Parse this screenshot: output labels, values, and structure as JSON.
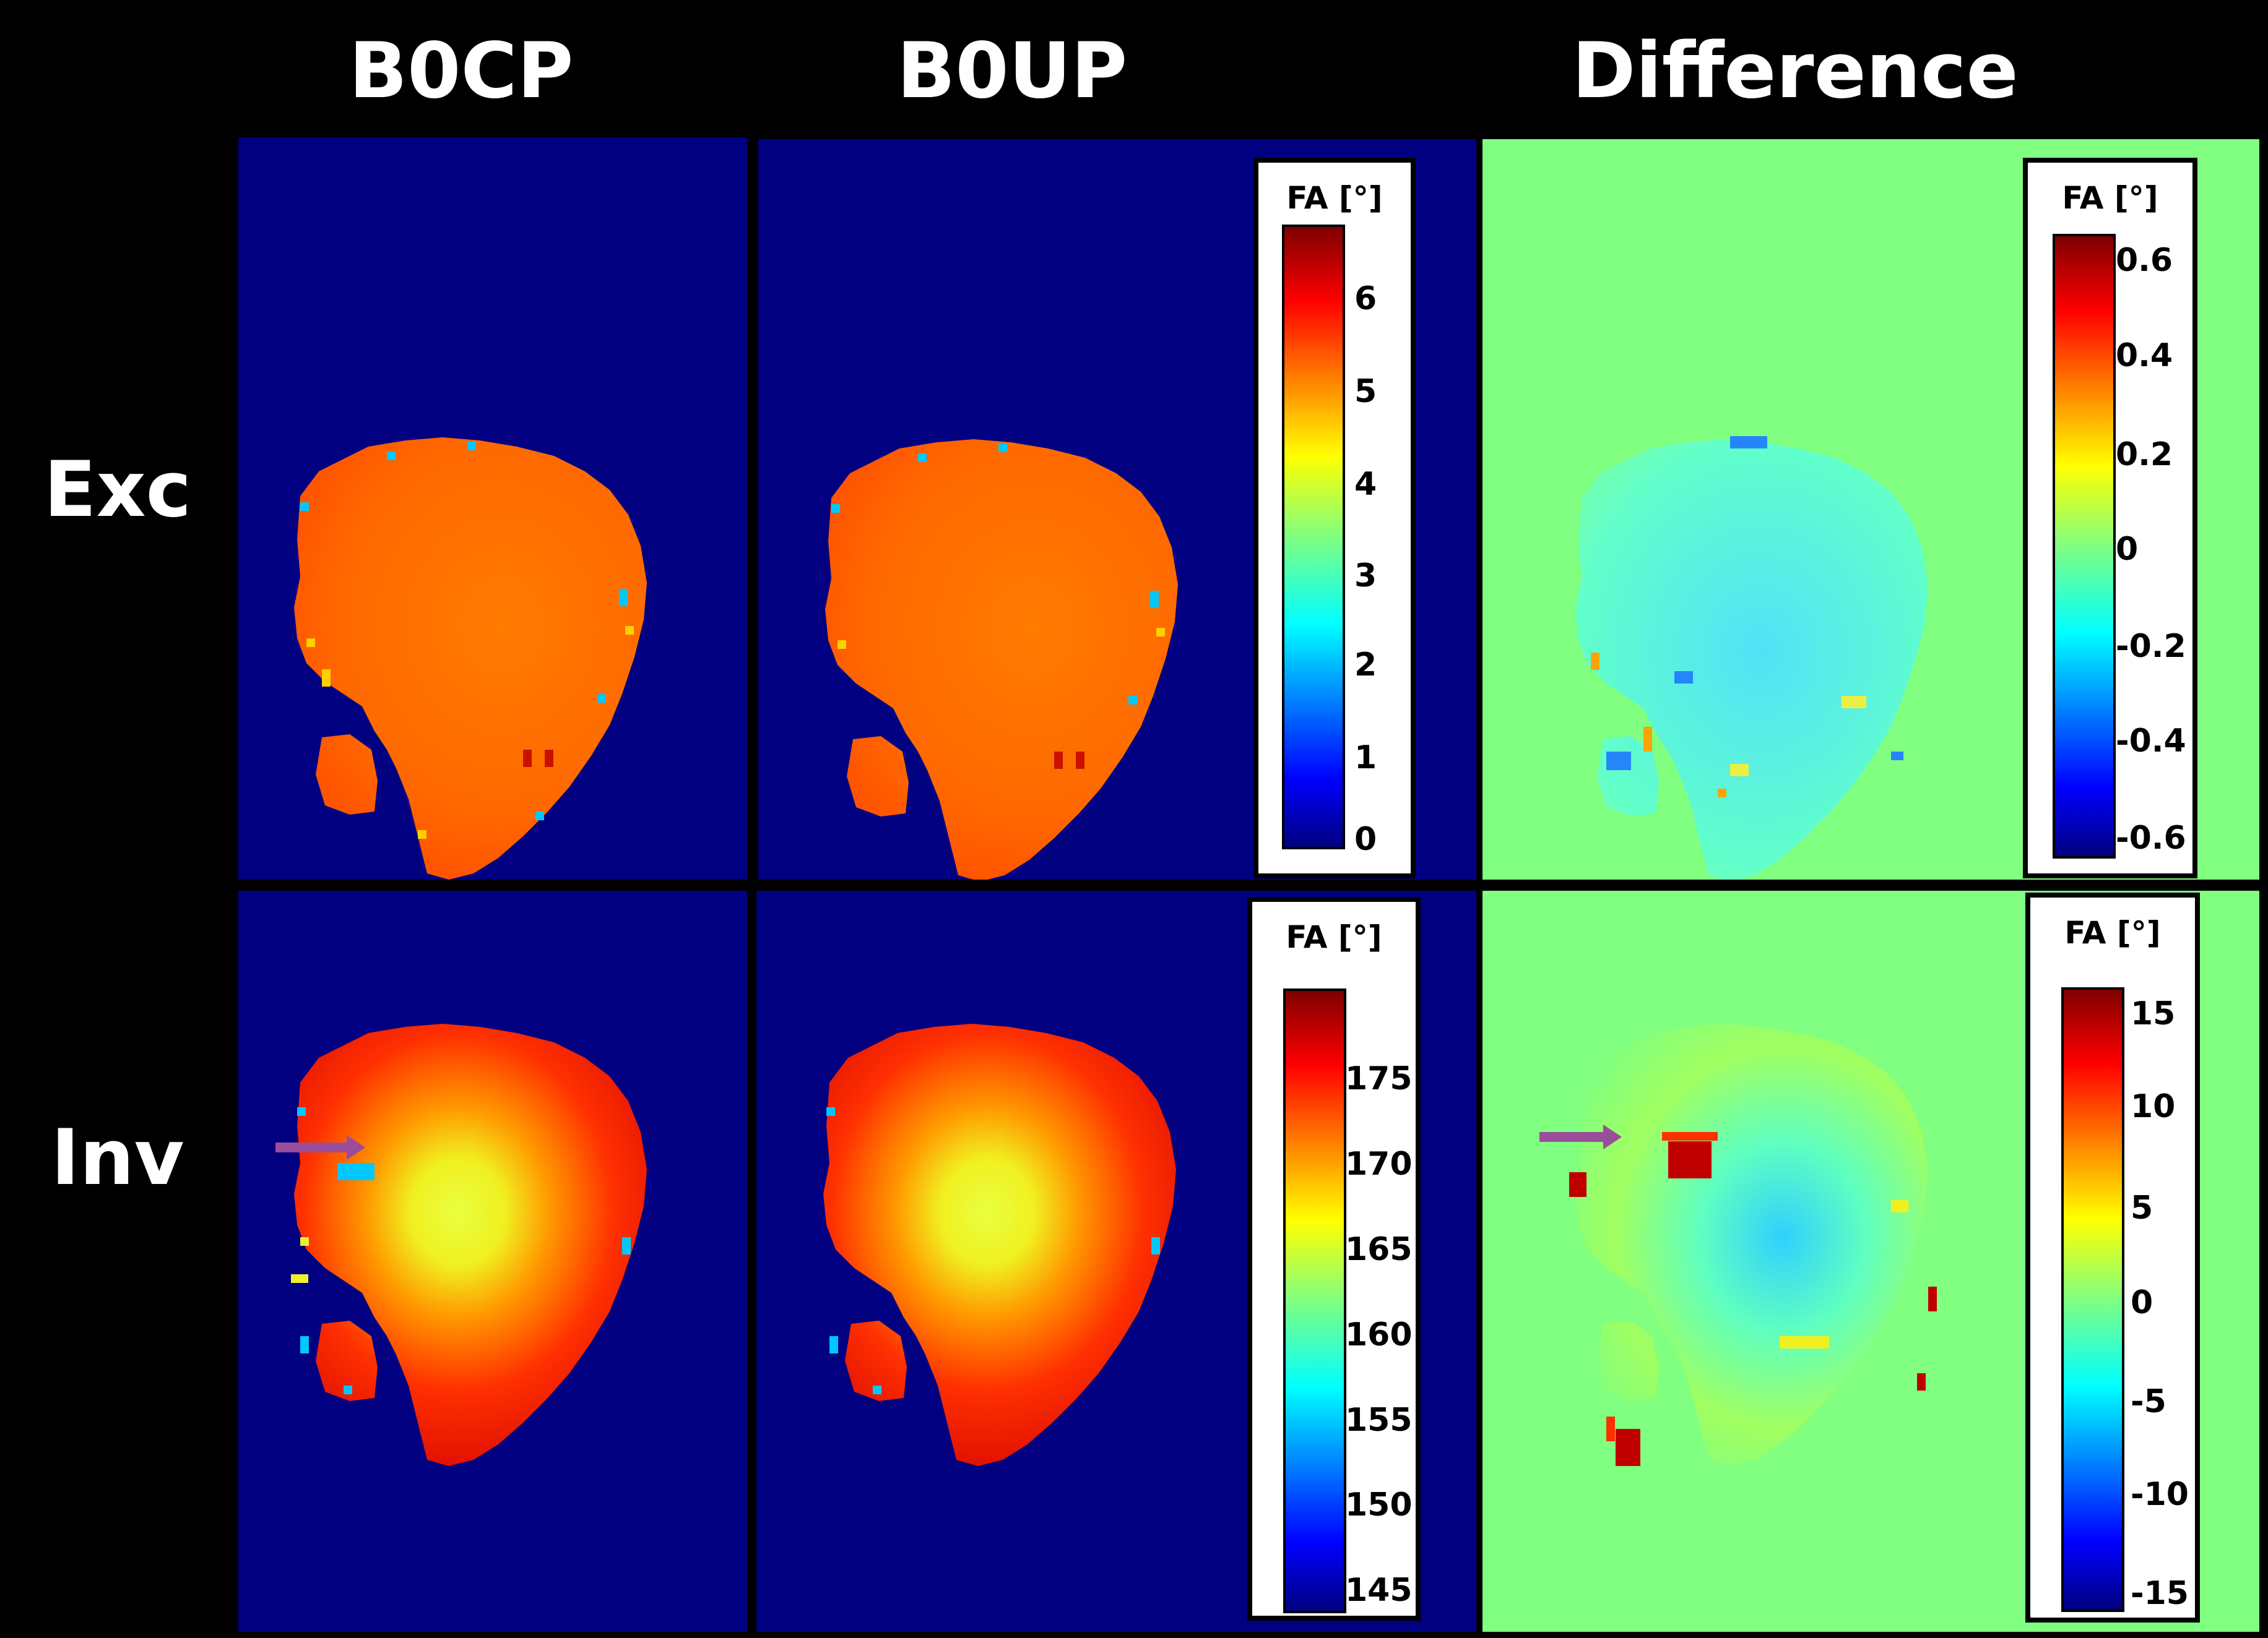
{
  "columns": [
    {
      "id": "b0cp",
      "label": "B0CP"
    },
    {
      "id": "b0up",
      "label": "B0UP"
    },
    {
      "id": "difference",
      "label": "Difference"
    }
  ],
  "rows": [
    {
      "id": "exc",
      "label": "Exc"
    },
    {
      "id": "inv",
      "label": "Inv"
    }
  ],
  "colors": {
    "background": "#000000",
    "fa_map_background": "#000080",
    "difference_background": "#80ff80",
    "annotation_arrow": "#9a4d9a"
  },
  "colorbars": {
    "exc_fa": {
      "title": "FA [°]",
      "ticks": [
        "6",
        "5",
        "4",
        "3",
        "2",
        "1",
        "0"
      ],
      "range": [
        0,
        6.8
      ]
    },
    "exc_diff": {
      "title": "FA [°]",
      "ticks": [
        "0.6",
        "0.4",
        "0.2",
        "0",
        "-0.2",
        "-0.4",
        "-0.6"
      ],
      "range": [
        -0.65,
        0.65
      ]
    },
    "inv_fa": {
      "title": "FA [°]",
      "ticks": [
        "175",
        "170",
        "165",
        "160",
        "155",
        "150",
        "145"
      ],
      "range": [
        144,
        180
      ]
    },
    "inv_diff": {
      "title": "FA [°]",
      "ticks": [
        "15",
        "10",
        "5",
        "0",
        "-5",
        "-10",
        "-15"
      ],
      "range": [
        -16,
        16
      ]
    }
  },
  "colormap": "jet"
}
